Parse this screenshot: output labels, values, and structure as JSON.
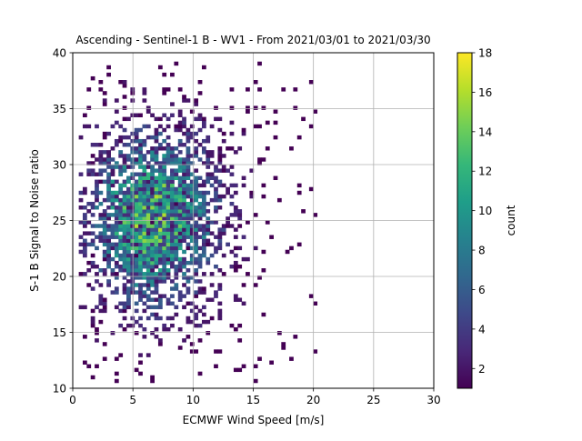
{
  "chart_data": {
    "type": "heatmap",
    "title": "Ascending - Sentinel-1 B - WV1 - From 2021/03/01 to 2021/03/30",
    "xlabel": "ECMWF Wind Speed [m/s]",
    "ylabel": "S-1 B Signal to Noise ratio",
    "xlim": [
      0,
      30
    ],
    "ylim": [
      10,
      40
    ],
    "x_ticks": [
      "0",
      "5",
      "10",
      "15",
      "20",
      "25",
      "30"
    ],
    "y_ticks": [
      "10",
      "15",
      "20",
      "25",
      "30",
      "35",
      "40"
    ],
    "grid": true,
    "colorbar": {
      "label": "count",
      "min": 1,
      "max": 18,
      "ticks": [
        "2",
        "4",
        "6",
        "8",
        "10",
        "12",
        "14",
        "16",
        "18"
      ],
      "colormap": [
        "#440154",
        "#482878",
        "#3e4989",
        "#31688e",
        "#26828e",
        "#1f9e89",
        "#35b779",
        "#6ece58",
        "#b5de2b",
        "#fde725"
      ]
    },
    "bin_width": {
      "x": 0.33,
      "y": 0.33
    },
    "distribution": {
      "peak_x": 6.5,
      "peak_y": 25,
      "peak_count": 18,
      "x_extent": [
        0.5,
        20.5
      ],
      "y_extent": [
        10.5,
        39
      ]
    }
  }
}
